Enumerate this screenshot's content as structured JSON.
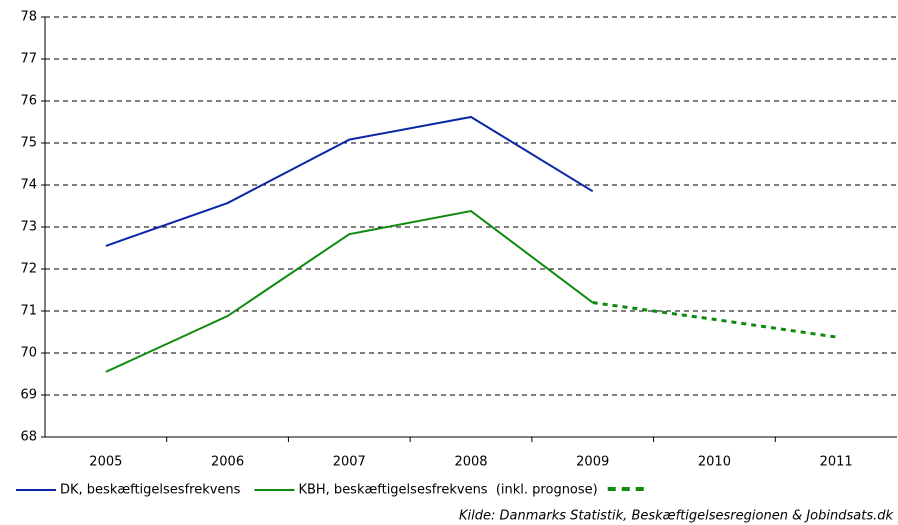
{
  "chart_data": {
    "type": "line",
    "categories": [
      "2005",
      "2006",
      "2007",
      "2008",
      "2009",
      "2010",
      "2011"
    ],
    "series": [
      {
        "name": "DK, beskæftigelsesfrekvens",
        "color": "#0a27a8",
        "values": [
          72.55,
          73.57,
          75.08,
          75.62,
          73.85,
          null,
          null
        ]
      },
      {
        "name": "KBH, beskæftigelsesfrekvens  (inkl. prognose)",
        "color": "#0f8a0f",
        "values": [
          69.55,
          70.88,
          72.83,
          73.38,
          71.2,
          null,
          null
        ]
      },
      {
        "color": "#0f8a0f",
        "dashed": true,
        "values": [
          null,
          null,
          null,
          null,
          71.2,
          70.8,
          70.38
        ]
      }
    ],
    "ylim": [
      68,
      78
    ],
    "yticks": [
      68,
      69,
      70,
      71,
      72,
      73,
      74,
      75,
      76,
      77,
      78
    ],
    "grid": true,
    "source": "Kilde: Danmarks Statistik, Beskæftigelsesregionen & Jobindsats.dk"
  }
}
